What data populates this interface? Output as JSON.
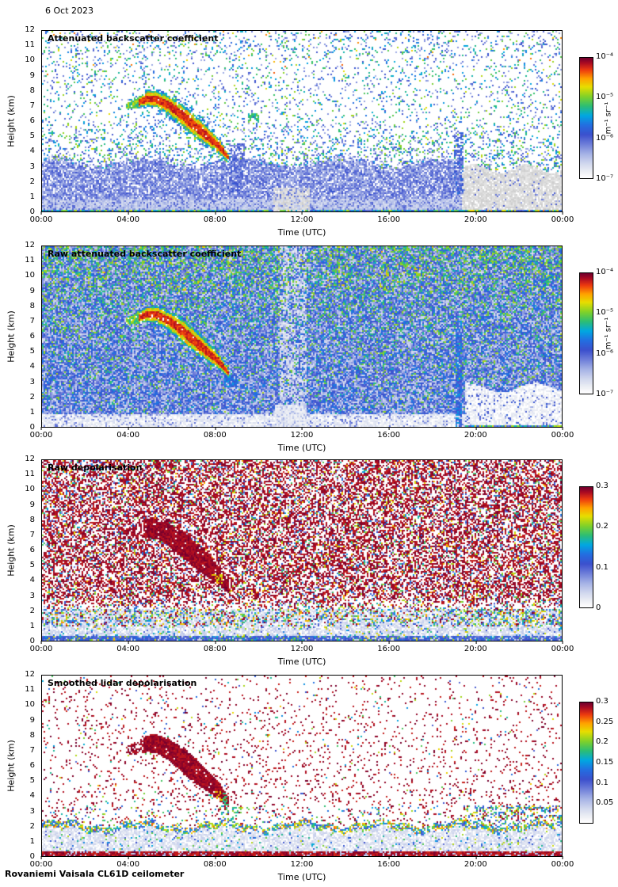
{
  "date_label": "6 Oct 2023",
  "footer": "Rovaniemi Vaisala CL61D ceilometer",
  "cloud_feature": {
    "description": "Descending cloud band from ~7.5 km at 04:30 to ~3.3 km at 08:30",
    "hours": [
      3.9,
      4.4,
      4.9,
      5.3,
      5.8,
      6.3,
      6.8,
      7.3,
      7.8,
      8.2,
      8.65
    ],
    "center_km": [
      7.0,
      7.2,
      7.5,
      7.45,
      7.1,
      6.6,
      6.0,
      5.4,
      4.8,
      4.3,
      3.5
    ],
    "halfwidth_km": [
      0.2,
      0.35,
      0.5,
      0.55,
      0.62,
      0.72,
      0.78,
      0.72,
      0.6,
      0.5,
      0.25
    ]
  },
  "chart_data": [
    {
      "type": "heatmap",
      "title": "Attenuated backscatter coefficient",
      "xlabel": "Time (UTC)",
      "ylabel": "Height (km)",
      "xticks": [
        "00:00",
        "04:00",
        "08:00",
        "12:00",
        "16:00",
        "20:00",
        "00:00"
      ],
      "yticks": [
        "0",
        "1",
        "2",
        "3",
        "4",
        "5",
        "6",
        "7",
        "8",
        "9",
        "10",
        "11",
        "12"
      ],
      "xlim_hours": [
        0,
        24
      ],
      "ylim_km": [
        0,
        12
      ],
      "colorbar": {
        "scale": "log",
        "range": [
          "1e-7",
          "1e-4"
        ],
        "label": "m⁻¹ sr⁻¹",
        "ticks": [
          {
            "label": "10⁻⁴",
            "pos": 1
          },
          {
            "label": "10⁻⁵",
            "pos": 0.6667
          },
          {
            "label": "10⁻⁶",
            "pos": 0.3333
          },
          {
            "label": "10⁻⁷",
            "pos": 0
          }
        ]
      },
      "render": {
        "style": "attn"
      }
    },
    {
      "type": "heatmap",
      "title": "Raw attenuated backscatter coefficient",
      "xlabel": "Time (UTC)",
      "ylabel": "Height (km)",
      "xticks": [
        "00:00",
        "04:00",
        "08:00",
        "12:00",
        "16:00",
        "20:00",
        "00:00"
      ],
      "yticks": [
        "0",
        "1",
        "2",
        "3",
        "4",
        "5",
        "6",
        "7",
        "8",
        "9",
        "10",
        "11",
        "12"
      ],
      "xlim_hours": [
        0,
        24
      ],
      "ylim_km": [
        0,
        12
      ],
      "colorbar": {
        "scale": "log",
        "range": [
          "1e-7",
          "1e-4"
        ],
        "label": "m⁻¹ sr⁻¹",
        "ticks": [
          {
            "label": "10⁻⁴",
            "pos": 1
          },
          {
            "label": "10⁻⁵",
            "pos": 0.6667
          },
          {
            "label": "10⁻⁶",
            "pos": 0.3333
          },
          {
            "label": "10⁻⁷",
            "pos": 0
          }
        ]
      },
      "render": {
        "style": "raw"
      }
    },
    {
      "type": "heatmap",
      "title": "Raw depolarisation",
      "xlabel": "Time (UTC)",
      "ylabel": "Height (km)",
      "xticks": [
        "00:00",
        "04:00",
        "08:00",
        "12:00",
        "16:00",
        "20:00",
        "00:00"
      ],
      "yticks": [
        "0",
        "1",
        "2",
        "3",
        "4",
        "5",
        "6",
        "7",
        "8",
        "9",
        "10",
        "11",
        "12"
      ],
      "xlim_hours": [
        0,
        24
      ],
      "ylim_km": [
        0,
        12
      ],
      "colorbar": {
        "scale": "linear",
        "range": [
          0,
          0.3
        ],
        "label": "",
        "ticks": [
          {
            "label": "0.3",
            "pos": 1
          },
          {
            "label": "0.2",
            "pos": 0.6667
          },
          {
            "label": "0.1",
            "pos": 0.3333
          },
          {
            "label": "0",
            "pos": 0
          }
        ]
      },
      "render": {
        "style": "rawdep"
      }
    },
    {
      "type": "heatmap",
      "title": "Smoothed lidar depolarisation",
      "xlabel": "Time (UTC)",
      "ylabel": "Height (km)",
      "xticks": [
        "00:00",
        "04:00",
        "08:00",
        "12:00",
        "16:00",
        "20:00",
        "00:00"
      ],
      "yticks": [
        "0",
        "1",
        "2",
        "3",
        "4",
        "5",
        "6",
        "7",
        "8",
        "9",
        "10",
        "11",
        "12"
      ],
      "xlim_hours": [
        0,
        24
      ],
      "ylim_km": [
        0,
        12
      ],
      "colorbar": {
        "scale": "linear",
        "range": [
          0,
          0.3
        ],
        "label": "",
        "ticks": [
          {
            "label": "0.3",
            "pos": 1
          },
          {
            "label": "0.25",
            "pos": 0.8333
          },
          {
            "label": "0.2",
            "pos": 0.6667
          },
          {
            "label": "0.15",
            "pos": 0.5
          },
          {
            "label": "0.1",
            "pos": 0.3333
          },
          {
            "label": "0.05",
            "pos": 0.1667
          }
        ]
      },
      "render": {
        "style": "smoothdep"
      }
    }
  ]
}
